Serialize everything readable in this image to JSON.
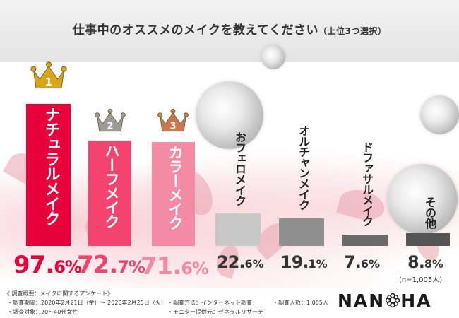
{
  "title": "仕事中のオススメのメイクを教えてください",
  "subtitle": "（上位3つ選択）",
  "note": "(n=1,005人)",
  "chart_data": {
    "type": "bar",
    "categories": [
      "ナチュラルメイク",
      "ハーフメイク",
      "カラーメイク",
      "おフェロメイク",
      "オルチャンメイク",
      "ドファサルメイク",
      "その他"
    ],
    "values": [
      97.6,
      72.7,
      71.6,
      22.6,
      19.1,
      7.6,
      8.8
    ],
    "value_labels": [
      {
        "int": "97.",
        "dec": "6%"
      },
      {
        "int": "72.",
        "dec": "7%"
      },
      {
        "int": "71.",
        "dec": "6%"
      },
      {
        "int": "22.",
        "dec": "6%"
      },
      {
        "int": "19.",
        "dec": "1%"
      },
      {
        "int": "7.",
        "dec": "6%"
      },
      {
        "int": "8.",
        "dec": "8%"
      }
    ],
    "ranks": [
      "1",
      "2",
      "3"
    ],
    "bar_colors": [
      "#e8003a",
      "#f2446e",
      "#f58aa4",
      "#c8c8c8",
      "#8f8f8f",
      "#6a6a6a",
      "#555555"
    ],
    "bar_fill_top": [
      "",
      "",
      "",
      "#ededed",
      "#d6d6d6",
      "#cfcfcf",
      "#c4c4c4"
    ],
    "label_colors": [
      "#ffffff",
      "#ffffff",
      "#ffffff",
      "#222222",
      "#222222",
      "#222222",
      "#222222"
    ],
    "pct_colors": [
      "#e8003a",
      "#f2446e",
      "#f58aa4",
      "#333333",
      "#333333",
      "#333333",
      "#333333"
    ],
    "crown_colors": [
      "#d9a514",
      "#9a9a9a",
      "#c8774e"
    ],
    "ylim": [
      0,
      100
    ]
  },
  "footer": {
    "summary": "《 調査概要：メイクに関するアンケート》",
    "period": "・調査期間：2020年2月21日（金）～ 2020年2月25日（火）",
    "method": "・調査方法：インターネット調査",
    "count": "・調査人数：1,005人",
    "target": "・調査対象：20～40代女性",
    "provider": "・モニター提供元：ゼネラルリサーチ"
  },
  "logo": {
    "left": "NAN",
    "right": "HA"
  }
}
